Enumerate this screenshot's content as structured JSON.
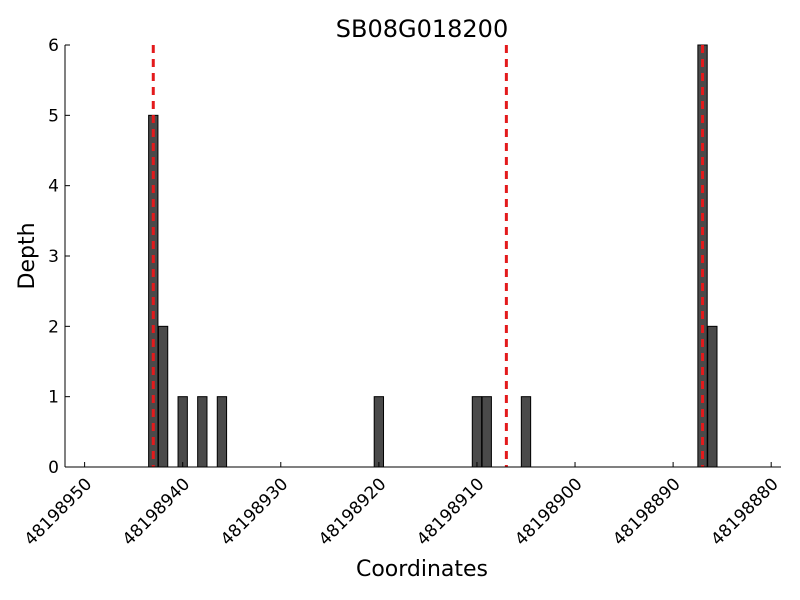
{
  "chart_data": {
    "type": "bar",
    "title": "SB08G018200",
    "xlabel": "Coordinates",
    "ylabel": "Depth",
    "x_reversed": true,
    "xlim": [
      48198952,
      48198879
    ],
    "ylim": [
      0,
      6
    ],
    "x_ticks": [
      48198950,
      48198940,
      48198930,
      48198920,
      48198910,
      48198900,
      48198890,
      48198880
    ],
    "y_ticks": [
      0,
      1,
      2,
      3,
      4,
      5,
      6
    ],
    "bar_color": "#4a4a4a",
    "bar_edge_color": "#000000",
    "marker_color": "#e31a1c",
    "grid": false,
    "bars": [
      {
        "x": 48198943,
        "value": 5
      },
      {
        "x": 48198942,
        "value": 2
      },
      {
        "x": 48198940,
        "value": 1
      },
      {
        "x": 48198938,
        "value": 1
      },
      {
        "x": 48198936,
        "value": 1
      },
      {
        "x": 48198920,
        "value": 1
      },
      {
        "x": 48198910,
        "value": 1
      },
      {
        "x": 48198909,
        "value": 1
      },
      {
        "x": 48198905,
        "value": 1
      },
      {
        "x": 48198887,
        "value": 6
      },
      {
        "x": 48198886,
        "value": 2
      }
    ],
    "markers": [
      48198943,
      48198907,
      48198887
    ]
  }
}
